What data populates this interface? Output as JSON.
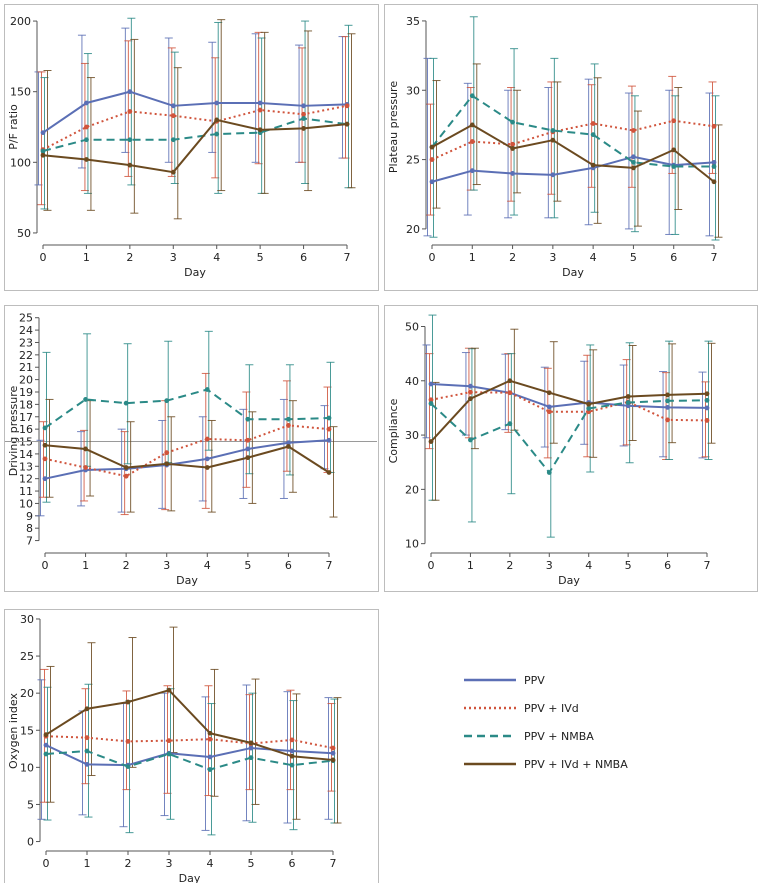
{
  "colors": {
    "PPV": "#5b6fb5",
    "PPV + IVd": "#d0543c",
    "PPV + NMBA": "#2b8a87",
    "PPV + IVd + NMBA": "#6b4a20",
    "frame": "#bdbdbd",
    "refline": "#9a9a9a"
  },
  "legend": {
    "items": [
      {
        "name": "PPV",
        "dash": "solid"
      },
      {
        "name": "PPV + IVd",
        "dash": "dotted"
      },
      {
        "name": "PPV + NMBA",
        "dash": "dashed"
      },
      {
        "name": "PPV + IVd + NMBA",
        "dash": "solid"
      }
    ]
  },
  "chart_data": [
    {
      "type": "line",
      "xlabel": "Day",
      "ylabel": "P/F ratio",
      "x": [
        0,
        1,
        2,
        3,
        4,
        5,
        6,
        7
      ],
      "ylim": [
        45,
        205
      ],
      "yticks": [
        50,
        100,
        150,
        200
      ],
      "series": [
        {
          "name": "PPV",
          "values": [
            121,
            142,
            150,
            140,
            142,
            142,
            140,
            141
          ],
          "lower": [
            84,
            96,
            107,
            100,
            107,
            100,
            100,
            103
          ],
          "upper": [
            164,
            190,
            195,
            188,
            185,
            191,
            183,
            189
          ]
        },
        {
          "name": "PPV + IVd",
          "values": [
            109,
            125,
            136,
            133,
            129,
            137,
            134,
            140
          ],
          "lower": [
            70,
            80,
            90,
            90,
            89,
            99,
            100,
            103
          ],
          "upper": [
            164,
            170,
            186,
            181,
            174,
            192,
            181,
            189
          ]
        },
        {
          "name": "PPV + NMBA",
          "values": [
            108,
            116,
            116,
            116,
            120,
            121,
            131,
            127
          ],
          "lower": [
            67,
            78,
            84,
            85,
            78,
            78,
            85,
            82
          ],
          "upper": [
            160,
            177,
            202,
            178,
            199,
            188,
            200,
            197
          ]
        },
        {
          "name": "PPV + IVd + NMBA",
          "values": [
            105,
            102,
            98,
            93,
            130,
            123,
            124,
            127
          ],
          "lower": [
            66,
            66,
            64,
            60,
            80,
            78,
            80,
            82
          ],
          "upper": [
            165,
            160,
            187,
            167,
            201,
            192,
            193,
            191
          ]
        }
      ]
    },
    {
      "type": "line",
      "xlabel": "Day",
      "ylabel": "Plateau pressure",
      "x": [
        0,
        1,
        2,
        3,
        4,
        5,
        6,
        7
      ],
      "ylim": [
        19.2,
        35.5
      ],
      "yticks": [
        20,
        25,
        30,
        35
      ],
      "series": [
        {
          "name": "PPV",
          "values": [
            23.4,
            24.2,
            24.0,
            23.9,
            24.4,
            25.2,
            24.6,
            24.8
          ],
          "lower": [
            19.5,
            21.0,
            20.8,
            20.8,
            20.3,
            20.0,
            19.6,
            19.5
          ],
          "upper": [
            32.3,
            30.5,
            30.0,
            30.2,
            30.8,
            29.8,
            30.0,
            29.8
          ]
        },
        {
          "name": "PPV + IVd",
          "values": [
            25.0,
            26.3,
            26.1,
            27.0,
            27.6,
            27.1,
            27.8,
            27.4
          ],
          "lower": [
            21.0,
            22.8,
            22.0,
            22.5,
            23.0,
            23.0,
            24.0,
            24.0
          ],
          "upper": [
            29.0,
            30.2,
            30.2,
            30.6,
            30.4,
            30.3,
            31.0,
            30.6
          ]
        },
        {
          "name": "PPV + NMBA",
          "values": [
            25.9,
            29.6,
            27.7,
            27.1,
            26.8,
            24.8,
            24.5,
            24.5
          ],
          "lower": [
            19.4,
            22.8,
            21.0,
            20.8,
            21.2,
            19.8,
            19.6,
            19.2
          ],
          "upper": [
            32.3,
            35.3,
            33.0,
            32.3,
            31.9,
            29.6,
            29.6,
            29.6
          ]
        },
        {
          "name": "PPV + IVd + NMBA",
          "values": [
            25.9,
            27.5,
            25.8,
            26.4,
            24.6,
            24.4,
            25.7,
            23.4
          ],
          "lower": [
            21.5,
            23.2,
            22.6,
            22.0,
            20.4,
            20.2,
            21.4,
            19.4
          ],
          "upper": [
            30.7,
            31.9,
            30.0,
            30.6,
            30.9,
            28.5,
            30.2,
            27.5
          ]
        }
      ]
    },
    {
      "type": "line",
      "xlabel": "Day",
      "ylabel": "Driving pressure",
      "x": [
        0,
        1,
        2,
        3,
        4,
        5,
        6,
        7
      ],
      "ylim": [
        6.4,
        25.3
      ],
      "yticks": [
        7,
        8,
        9,
        10,
        11,
        12,
        13,
        14,
        15,
        16,
        17,
        18,
        19,
        20,
        21,
        22,
        23,
        24,
        25
      ],
      "refline": 15,
      "series": [
        {
          "name": "PPV",
          "values": [
            12.0,
            12.7,
            12.8,
            13.1,
            13.6,
            14.4,
            14.9,
            15.1
          ],
          "lower": [
            9.0,
            9.8,
            9.3,
            9.6,
            10.2,
            10.4,
            10.4,
            12.8
          ],
          "upper": [
            15.1,
            15.8,
            16.0,
            16.7,
            17.0,
            17.6,
            18.4,
            17.9
          ]
        },
        {
          "name": "PPV + IVd",
          "values": [
            13.6,
            12.9,
            12.2,
            14.1,
            15.2,
            15.1,
            16.3,
            16.0
          ],
          "lower": [
            10.5,
            10.2,
            9.1,
            9.5,
            9.6,
            11.3,
            12.6,
            12.5
          ],
          "upper": [
            16.6,
            15.9,
            15.8,
            18.3,
            20.5,
            19.0,
            19.9,
            19.4
          ]
        },
        {
          "name": "PPV + NMBA",
          "values": [
            16.1,
            18.4,
            18.1,
            18.3,
            19.2,
            16.8,
            16.8,
            16.9
          ],
          "lower": [
            10.1,
            13.0,
            13.2,
            13.3,
            14.3,
            12.4,
            12.3,
            12.5
          ],
          "upper": [
            22.2,
            23.7,
            22.9,
            23.1,
            23.9,
            21.2,
            21.2,
            21.4
          ]
        },
        {
          "name": "PPV + IVd + NMBA",
          "values": [
            14.7,
            14.4,
            12.9,
            13.2,
            12.9,
            13.7,
            14.6,
            12.5
          ],
          "lower": [
            10.5,
            10.6,
            9.3,
            9.4,
            9.3,
            10.0,
            10.9,
            8.9
          ],
          "upper": [
            18.4,
            18.3,
            16.6,
            17.0,
            16.7,
            17.4,
            18.3,
            16.2
          ]
        }
      ]
    },
    {
      "type": "line",
      "xlabel": "Day",
      "ylabel": "Compliance",
      "x": [
        0,
        1,
        2,
        3,
        4,
        5,
        6,
        7
      ],
      "ylim": [
        9.2,
        52.3
      ],
      "yticks": [
        10,
        20,
        30,
        40,
        50
      ],
      "series": [
        {
          "name": "PPV",
          "values": [
            39.4,
            39.0,
            37.8,
            35.2,
            36.0,
            35.4,
            35.1,
            35.0
          ],
          "lower": [
            29.5,
            30.0,
            31.0,
            27.8,
            28.3,
            28.0,
            26.0,
            25.8
          ],
          "upper": [
            46.6,
            45.2,
            44.9,
            42.5,
            43.6,
            42.9,
            41.7,
            41.6
          ]
        },
        {
          "name": "PPV + IVd",
          "values": [
            36.5,
            37.9,
            37.8,
            34.3,
            34.3,
            36.1,
            32.8,
            32.7
          ],
          "lower": [
            27.5,
            29.5,
            30.5,
            25.8,
            26.0,
            28.2,
            25.5,
            26.0
          ],
          "upper": [
            45.0,
            46.0,
            45.0,
            42.3,
            44.7,
            43.9,
            41.5,
            39.8
          ]
        },
        {
          "name": "PPV + NMBA",
          "values": [
            35.8,
            29.1,
            32.1,
            23.1,
            34.9,
            36.0,
            36.3,
            36.4
          ],
          "lower": [
            18.0,
            14.0,
            19.2,
            11.2,
            23.2,
            24.9,
            25.5,
            25.5
          ],
          "upper": [
            52.1,
            45.9,
            45.0,
            35.2,
            46.6,
            47.0,
            47.3,
            47.3
          ]
        },
        {
          "name": "PPV + IVd + NMBA",
          "values": [
            28.8,
            36.7,
            40.0,
            37.8,
            35.7,
            37.1,
            37.4,
            37.6
          ],
          "lower": [
            18.0,
            27.5,
            30.9,
            28.5,
            25.9,
            29.0,
            28.6,
            28.5
          ],
          "upper": [
            39.7,
            46.0,
            49.5,
            47.2,
            45.7,
            46.5,
            46.8,
            46.9
          ]
        }
      ]
    },
    {
      "type": "line",
      "xlabel": "Day",
      "ylabel": "Oxygen index",
      "x": [
        0,
        1,
        2,
        3,
        4,
        5,
        6,
        7
      ],
      "ylim": [
        -0.6,
        30.4
      ],
      "yticks": [
        0,
        5,
        10,
        15,
        20,
        25,
        30
      ],
      "series": [
        {
          "name": "PPV",
          "values": [
            13.0,
            10.4,
            10.3,
            11.9,
            11.4,
            12.6,
            12.2,
            11.9
          ],
          "lower": [
            3.0,
            3.6,
            2.0,
            3.5,
            1.5,
            2.8,
            2.5,
            3.0
          ],
          "upper": [
            21.8,
            17.6,
            18.6,
            20.0,
            19.5,
            21.1,
            20.2,
            19.4
          ]
        },
        {
          "name": "PPV + IVd",
          "values": [
            14.2,
            14.0,
            13.5,
            13.6,
            13.8,
            13.2,
            13.7,
            12.6
          ],
          "lower": [
            5.3,
            7.8,
            7.0,
            6.5,
            6.2,
            7.0,
            7.0,
            6.8
          ],
          "upper": [
            23.2,
            20.6,
            20.3,
            21.0,
            21.0,
            19.8,
            20.4,
            18.6
          ]
        },
        {
          "name": "PPV + NMBA",
          "values": [
            11.8,
            12.2,
            10.1,
            11.8,
            9.7,
            11.3,
            10.3,
            10.9
          ],
          "lower": [
            2.9,
            3.3,
            1.2,
            3.0,
            0.9,
            2.6,
            1.6,
            2.5
          ],
          "upper": [
            20.8,
            21.2,
            19.0,
            20.6,
            18.6,
            20.0,
            19.0,
            19.2
          ]
        },
        {
          "name": "PPV + IVd + NMBA",
          "values": [
            14.4,
            17.9,
            18.8,
            20.4,
            14.6,
            13.3,
            11.5,
            11.0
          ],
          "lower": [
            5.3,
            8.9,
            10.0,
            12.0,
            6.1,
            5.0,
            3.0,
            2.5
          ],
          "upper": [
            23.6,
            26.8,
            27.5,
            28.9,
            23.2,
            21.9,
            19.9,
            19.4
          ]
        }
      ]
    }
  ]
}
